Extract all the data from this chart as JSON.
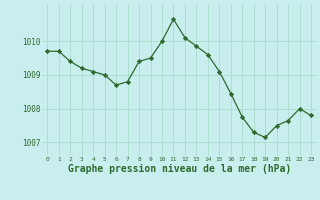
{
  "x": [
    0,
    1,
    2,
    3,
    4,
    5,
    6,
    7,
    8,
    9,
    10,
    11,
    12,
    13,
    14,
    15,
    16,
    17,
    18,
    19,
    20,
    21,
    22,
    23
  ],
  "y": [
    1009.7,
    1009.7,
    1009.4,
    1009.2,
    1009.1,
    1009.0,
    1008.7,
    1008.8,
    1009.4,
    1009.5,
    1010.0,
    1010.65,
    1010.1,
    1009.85,
    1009.6,
    1009.1,
    1008.45,
    1007.75,
    1007.3,
    1007.15,
    1007.5,
    1007.65,
    1008.0,
    1007.8
  ],
  "line_color": "#2d6a2d",
  "marker_color": "#2d6a2d",
  "bg_color": "#c8eeee",
  "grid_color": "#aaddcc",
  "xlabel": "Graphe pression niveau de la mer (hPa)",
  "xlabel_fontsize": 7,
  "tick_labels": [
    "0",
    "1",
    "2",
    "3",
    "4",
    "5",
    "6",
    "7",
    "8",
    "9",
    "10",
    "11",
    "12",
    "13",
    "14",
    "15",
    "16",
    "17",
    "18",
    "19",
    "20",
    "21",
    "22",
    "23"
  ],
  "yticks": [
    1007,
    1008,
    1009,
    1010
  ],
  "ylim": [
    1006.6,
    1011.1
  ],
  "xlim": [
    -0.5,
    23.5
  ],
  "label_color": "#2d6a2d"
}
